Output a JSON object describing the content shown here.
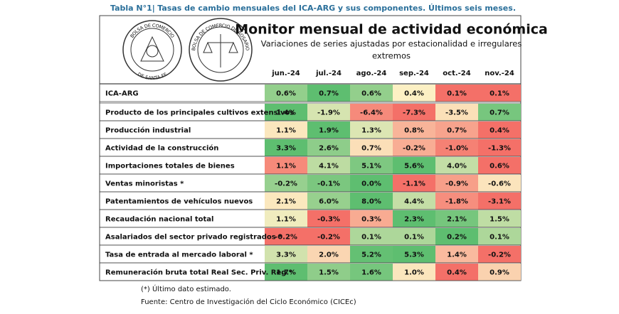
{
  "caption": {
    "label": "Tabla N°1|",
    "text": "Tasas de cambio mensuales del ICA-ARG y sus componentes. Últimos seis meses."
  },
  "logos": [
    {
      "top": "BOLSA DE COMERCIO",
      "bottom": "DE SANTA FE"
    },
    {
      "top": "BOLSA DE COMERCIO DE ROSARIO"
    }
  ],
  "header": {
    "title": "Monitor mensual de actividad económica",
    "subtitle": [
      "Variaciones de series ajustadas por estacionalidad e irregulares",
      "extremos"
    ]
  },
  "table": {
    "columns": [
      "jun.-24",
      "jul.-24",
      "ago.-24",
      "sep.-24",
      "oct.-24",
      "nov.-24"
    ],
    "rows": [
      {
        "label": "ICA-ARG",
        "values": [
          "0.6%",
          "0.7%",
          "0.6%",
          "0.4%",
          "0.1%",
          "0.1%"
        ]
      },
      {
        "label": "Producto de los principales cultivos extensivos",
        "values": [
          "1.4%",
          "-1.9%",
          "-6.4%",
          "-7.3%",
          "-3.5%",
          "0.7%"
        ]
      },
      {
        "label": "Producción industrial",
        "values": [
          "1.1%",
          "1.9%",
          "1.3%",
          "0.8%",
          "0.7%",
          "0.4%"
        ]
      },
      {
        "label": "Actividad de la construcción",
        "values": [
          "3.3%",
          "2.6%",
          "0.7%",
          "-0.2%",
          "-1.0%",
          "-1.3%"
        ]
      },
      {
        "label": "Importaciones totales de bienes",
        "values": [
          "1.1%",
          "4.1%",
          "5.1%",
          "5.6%",
          "4.0%",
          "0.6%"
        ]
      },
      {
        "label": "Ventas minoristas *",
        "values": [
          "-0.2%",
          "-0.1%",
          "0.0%",
          "-1.1%",
          "-0.9%",
          "-0.6%"
        ]
      },
      {
        "label": "Patentamientos de vehículos nuevos",
        "values": [
          "2.1%",
          "6.0%",
          "8.0%",
          "4.4%",
          "-1.8%",
          "-3.1%"
        ]
      },
      {
        "label": "Recaudación nacional total",
        "values": [
          "1.1%",
          "-0.3%",
          "0.3%",
          "2.3%",
          "2.1%",
          "1.5%"
        ]
      },
      {
        "label": "Asalariados del sector privado registrados *",
        "values": [
          "-0.2%",
          "-0.2%",
          "0.1%",
          "0.1%",
          "0.2%",
          "0.1%"
        ]
      },
      {
        "label": "Tasa de entrada al mercado laboral *",
        "values": [
          "3.3%",
          "2.0%",
          "5.2%",
          "5.3%",
          "1.4%",
          "-0.2%"
        ]
      },
      {
        "label": "Remuneración bruta total Real Sec. Priv. Reg.*",
        "values": [
          "1.7%",
          "1.5%",
          "1.6%",
          "1.0%",
          "0.4%",
          "0.9%"
        ]
      }
    ]
  },
  "notes": [
    "(*) Último dato estimado.",
    "Fuente: Centro de Investigación del Ciclo Económico (CICEc)"
  ]
}
